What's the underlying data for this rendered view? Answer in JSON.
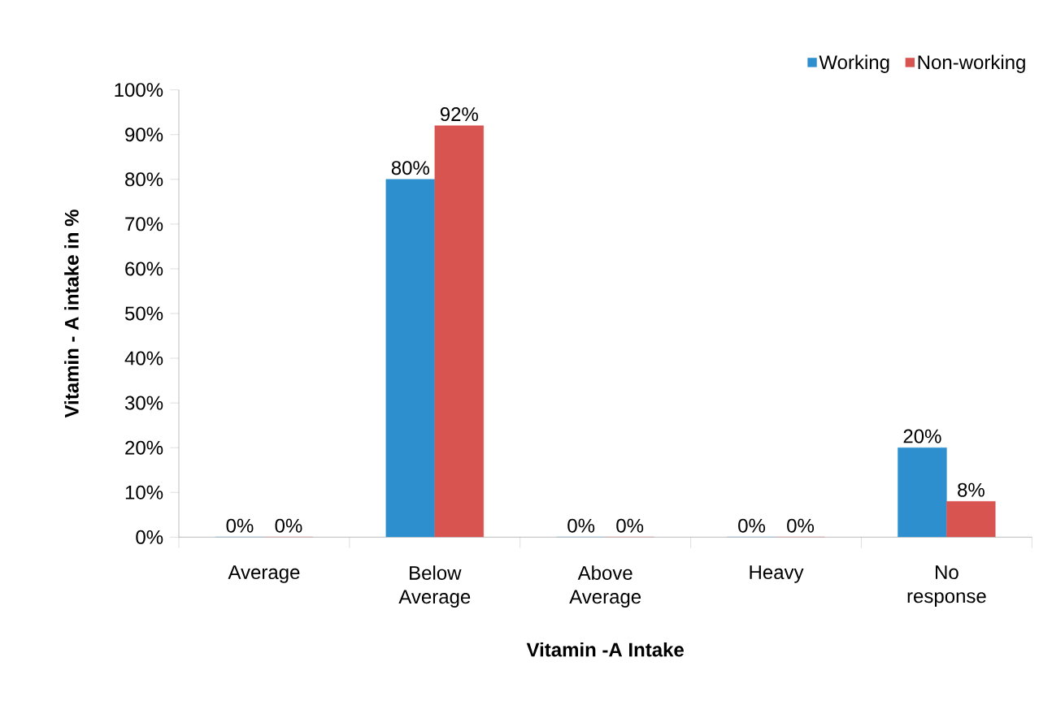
{
  "chart_data": {
    "type": "bar",
    "xlabel": "Vitamin -A Intake",
    "ylabel": "Vitamin - A  intake in %",
    "categories": [
      "Average",
      "Below Average",
      "Above Average",
      "Heavy",
      "No response"
    ],
    "series": [
      {
        "name": "Working",
        "color": "#2e8fcf",
        "values": [
          0,
          80,
          0,
          0,
          20
        ],
        "value_labels": [
          "0%",
          "80%",
          "0%",
          "0%",
          "20%"
        ]
      },
      {
        "name": "Non-working",
        "color": "#d85450",
        "values": [
          0,
          92,
          0,
          0,
          8
        ],
        "value_labels": [
          "0%",
          "92%",
          "0%",
          "0%",
          "8%"
        ]
      }
    ],
    "ylim": [
      0,
      100
    ],
    "yticks": [
      {
        "value": 0,
        "label": "0%"
      },
      {
        "value": 10,
        "label": "10%"
      },
      {
        "value": 20,
        "label": "20%"
      },
      {
        "value": 30,
        "label": "30%"
      },
      {
        "value": 40,
        "label": "40%"
      },
      {
        "value": 50,
        "label": "50%"
      },
      {
        "value": 60,
        "label": "60%"
      },
      {
        "value": 70,
        "label": "70%"
      },
      {
        "value": 80,
        "label": "80%"
      },
      {
        "value": 90,
        "label": "90%"
      },
      {
        "value": 100,
        "label": "100%"
      }
    ],
    "grid": false,
    "legend": "top right"
  }
}
